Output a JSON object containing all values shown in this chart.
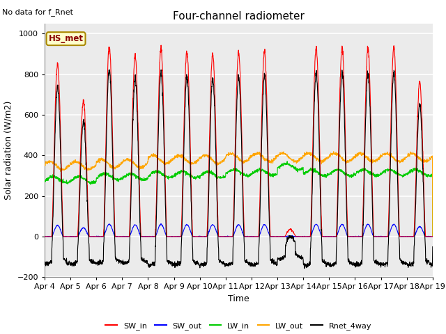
{
  "title": "Four-channel radiometer",
  "top_left_text": "No data for f_Rnet",
  "annotation_text": "HS_met",
  "xlabel": "Time",
  "ylabel": "Solar radiation (W/m2)",
  "ylim": [
    -200,
    1050
  ],
  "xlim_days": [
    0,
    15
  ],
  "tick_labels": [
    "Apr 4",
    "Apr 5",
    "Apr 6",
    "Apr 7",
    "Apr 8",
    "Apr 9",
    "Apr 10",
    "Apr 11",
    "Apr 12",
    "Apr 13",
    "Apr 14",
    "Apr 15",
    "Apr 16",
    "Apr 17",
    "Apr 18",
    "Apr 19"
  ],
  "legend": [
    {
      "label": "SW_in",
      "color": "#ff0000"
    },
    {
      "label": "SW_out",
      "color": "#0000ff"
    },
    {
      "label": "LW_in",
      "color": "#00cc00"
    },
    {
      "label": "LW_out",
      "color": "#ffa500"
    },
    {
      "label": "Rnet_4way",
      "color": "#000000"
    }
  ],
  "plot_bg_color": "#ebebeb",
  "grid_color": "#ffffff",
  "annotation_box_color": "#ffffcc",
  "annotation_border_color": "#aa8800"
}
